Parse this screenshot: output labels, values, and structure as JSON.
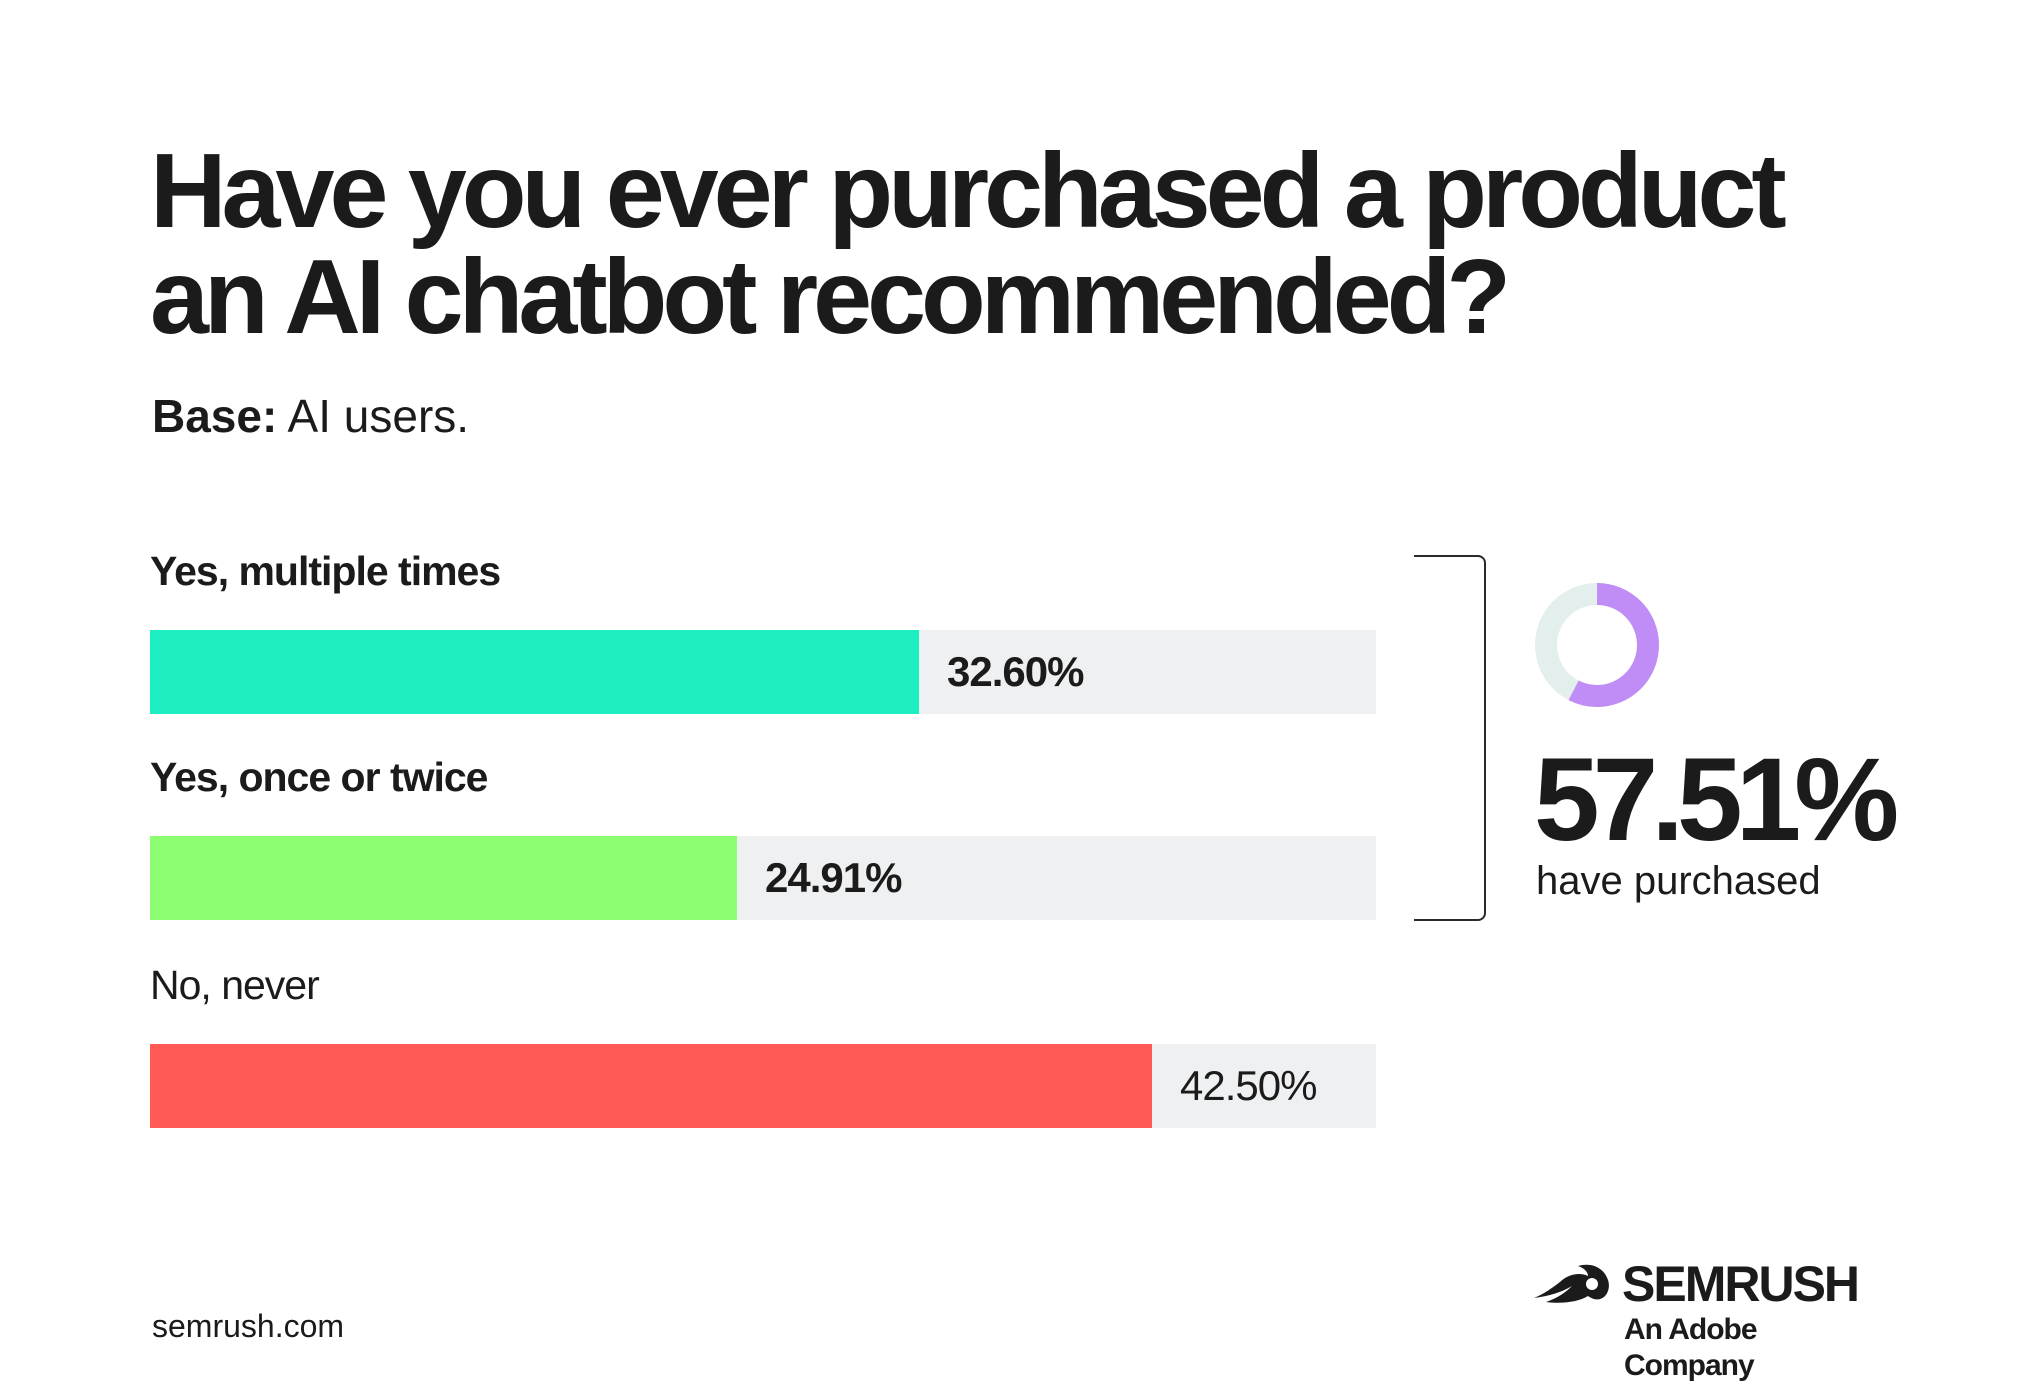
{
  "title": {
    "line1": "Have you ever purchased a product",
    "line2": "an AI chatbot recommended?"
  },
  "base": {
    "label": "Base:",
    "value": " AI users."
  },
  "chart_data": {
    "type": "bar",
    "orientation": "horizontal",
    "title": "Have you ever purchased a product an AI chatbot recommended?",
    "categories": [
      "Yes, multiple times",
      "Yes, once or twice",
      "No, never"
    ],
    "values": [
      32.6,
      24.91,
      42.5
    ],
    "value_labels": [
      "32.60%",
      "24.91%",
      "42.50%"
    ],
    "colors": [
      "#1ceec2",
      "#8dfd72",
      "#ff5a55"
    ],
    "track_color": "#eff0f1",
    "xlim": [
      0,
      52
    ],
    "grid": false
  },
  "summary": {
    "value": 57.51,
    "label": "57.51%",
    "caption": "have purchased",
    "donut_color": "#c08cf6",
    "donut_track_color": "#e3efec"
  },
  "footer": {
    "url": "semrush.com"
  },
  "brand": {
    "name": "SEMRUSH",
    "tagline": "An Adobe Company"
  }
}
